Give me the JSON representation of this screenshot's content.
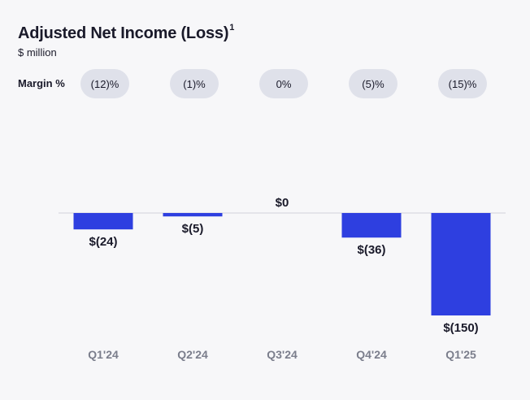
{
  "header": {
    "title": "Adjusted Net Income (Loss)",
    "footnote": "1",
    "subtitle": "$ million",
    "margin_label": "Margin %"
  },
  "margins": [
    "(12)%",
    "(1)%",
    "0%",
    "(5)%",
    "(15)%"
  ],
  "chart_data": {
    "type": "bar",
    "title": "Adjusted Net Income (Loss)",
    "ylabel": "$ million",
    "categories": [
      "Q1'24",
      "Q2'24",
      "Q3'24",
      "Q4'24",
      "Q1'25"
    ],
    "values": [
      -24,
      -5,
      0,
      -36,
      -150
    ],
    "value_labels": [
      "$(24)",
      "$(5)",
      "$0",
      "$(36)",
      "$(150)"
    ],
    "bar_color": "#2e3fe0",
    "ylim": [
      -150,
      0
    ]
  }
}
